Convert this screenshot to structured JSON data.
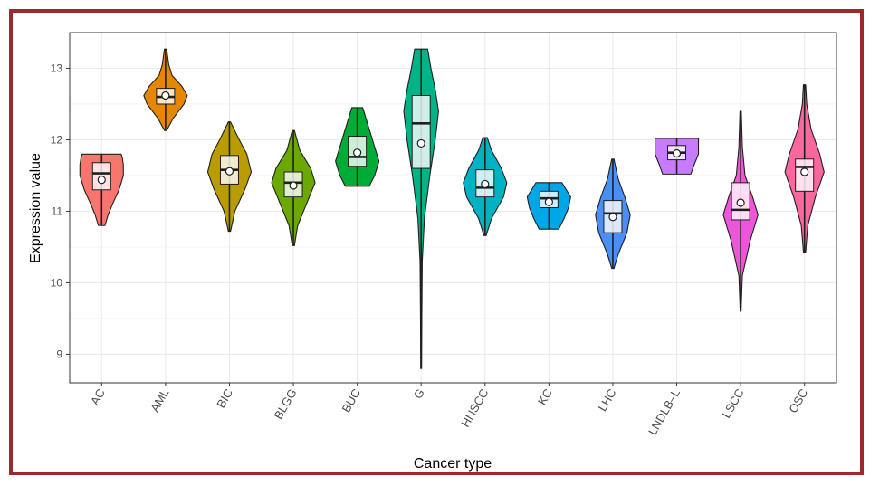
{
  "colors": {
    "frame": "#9b2b2b",
    "panel_border": "#333333",
    "grid": "#ebebeb",
    "outline": "#1f1f1f"
  },
  "chart_data": {
    "type": "violin",
    "xlabel": "Cancer type",
    "ylabel": "Expression value",
    "ylim": [
      8.6,
      13.5
    ],
    "yticks": [
      9,
      10,
      11,
      12,
      13
    ],
    "grid": true,
    "overlays": [
      "boxplot",
      "mean-point"
    ],
    "groups": [
      {
        "name": "AC",
        "color": "#f8766d",
        "min": 10.8,
        "q1": 11.3,
        "median": 11.53,
        "q3": 11.68,
        "max": 11.8,
        "mean": 11.44,
        "density": [
          [
            10.8,
            0.15
          ],
          [
            10.95,
            0.3
          ],
          [
            11.1,
            0.5
          ],
          [
            11.3,
            0.8
          ],
          [
            11.5,
            1.0
          ],
          [
            11.65,
            1.0
          ],
          [
            11.75,
            0.95
          ],
          [
            11.8,
            0.9
          ]
        ]
      },
      {
        "name": "AML",
        "color": "#e58700",
        "min": 12.13,
        "q1": 12.5,
        "median": 12.6,
        "q3": 12.72,
        "max": 13.27,
        "mean": 12.62,
        "density": [
          [
            12.13,
            0.05
          ],
          [
            12.3,
            0.35
          ],
          [
            12.5,
            0.85
          ],
          [
            12.62,
            1.0
          ],
          [
            12.75,
            0.75
          ],
          [
            12.9,
            0.3
          ],
          [
            13.05,
            0.15
          ],
          [
            13.27,
            0.05
          ]
        ]
      },
      {
        "name": "BIC",
        "color": "#b89c00",
        "min": 10.72,
        "q1": 11.38,
        "median": 11.58,
        "q3": 11.78,
        "max": 12.25,
        "mean": 11.56,
        "density": [
          [
            10.72,
            0.05
          ],
          [
            11.0,
            0.25
          ],
          [
            11.3,
            0.7
          ],
          [
            11.55,
            1.0
          ],
          [
            11.8,
            0.8
          ],
          [
            12.0,
            0.45
          ],
          [
            12.25,
            0.05
          ]
        ]
      },
      {
        "name": "BLGG",
        "color": "#6ba900",
        "min": 10.52,
        "q1": 11.2,
        "median": 11.4,
        "q3": 11.55,
        "max": 12.13,
        "mean": 11.36,
        "density": [
          [
            10.52,
            0.05
          ],
          [
            10.8,
            0.2
          ],
          [
            11.1,
            0.6
          ],
          [
            11.4,
            1.0
          ],
          [
            11.6,
            0.8
          ],
          [
            11.85,
            0.3
          ],
          [
            12.13,
            0.05
          ]
        ]
      },
      {
        "name": "BUC",
        "color": "#00ab38",
        "min": 11.35,
        "q1": 11.63,
        "median": 11.76,
        "q3": 12.05,
        "max": 12.45,
        "mean": 11.82,
        "density": [
          [
            11.35,
            0.55
          ],
          [
            11.5,
            0.8
          ],
          [
            11.7,
            1.0
          ],
          [
            11.9,
            0.8
          ],
          [
            12.1,
            0.6
          ],
          [
            12.3,
            0.4
          ],
          [
            12.45,
            0.25
          ]
        ]
      },
      {
        "name": "G",
        "color": "#00b487",
        "min": 8.8,
        "q1": 11.6,
        "median": 12.23,
        "q3": 12.62,
        "max": 13.27,
        "mean": 11.95,
        "density": [
          [
            8.8,
            0.02
          ],
          [
            9.5,
            0.03
          ],
          [
            10.3,
            0.05
          ],
          [
            10.9,
            0.15
          ],
          [
            11.5,
            0.4
          ],
          [
            12.0,
            0.65
          ],
          [
            12.4,
            0.8
          ],
          [
            12.7,
            0.65
          ],
          [
            13.0,
            0.45
          ],
          [
            13.27,
            0.3
          ]
        ]
      },
      {
        "name": "HNSCC",
        "color": "#00b2c4",
        "min": 10.66,
        "q1": 11.2,
        "median": 11.33,
        "q3": 11.58,
        "max": 12.03,
        "mean": 11.38,
        "density": [
          [
            10.66,
            0.05
          ],
          [
            10.9,
            0.3
          ],
          [
            11.2,
            0.85
          ],
          [
            11.4,
            1.0
          ],
          [
            11.6,
            0.75
          ],
          [
            11.85,
            0.3
          ],
          [
            12.03,
            0.1
          ]
        ]
      },
      {
        "name": "KC",
        "color": "#00a7e6",
        "min": 10.75,
        "q1": 11.05,
        "median": 11.18,
        "q3": 11.28,
        "max": 11.4,
        "mean": 11.13,
        "density": [
          [
            10.75,
            0.45
          ],
          [
            10.9,
            0.7
          ],
          [
            11.05,
            0.9
          ],
          [
            11.2,
            1.0
          ],
          [
            11.3,
            0.8
          ],
          [
            11.4,
            0.6
          ]
        ]
      },
      {
        "name": "LHC",
        "color": "#4a8ef7",
        "min": 10.2,
        "q1": 10.7,
        "median": 10.97,
        "q3": 11.15,
        "max": 11.73,
        "mean": 10.92,
        "density": [
          [
            10.2,
            0.05
          ],
          [
            10.4,
            0.25
          ],
          [
            10.7,
            0.65
          ],
          [
            10.95,
            0.8
          ],
          [
            11.2,
            0.55
          ],
          [
            11.45,
            0.25
          ],
          [
            11.73,
            0.05
          ]
        ]
      },
      {
        "name": "LNDLB–L",
        "color": "#c77cff",
        "min": 11.52,
        "q1": 11.72,
        "median": 11.82,
        "q3": 11.92,
        "max": 12.02,
        "mean": 11.81,
        "density": [
          [
            11.52,
            0.65
          ],
          [
            11.65,
            0.8
          ],
          [
            11.8,
            1.0
          ],
          [
            11.95,
            1.0
          ],
          [
            12.02,
            1.0
          ]
        ]
      },
      {
        "name": "LSCC",
        "color": "#ec56d9",
        "min": 9.6,
        "q1": 10.88,
        "median": 11.02,
        "q3": 11.4,
        "max": 12.4,
        "mean": 11.12,
        "density": [
          [
            9.6,
            0.02
          ],
          [
            10.1,
            0.08
          ],
          [
            10.6,
            0.45
          ],
          [
            10.95,
            0.8
          ],
          [
            11.2,
            0.55
          ],
          [
            11.5,
            0.2
          ],
          [
            11.9,
            0.08
          ],
          [
            12.4,
            0.03
          ]
        ]
      },
      {
        "name": "OSC",
        "color": "#f8689e",
        "min": 10.43,
        "q1": 11.28,
        "median": 11.62,
        "q3": 11.73,
        "max": 12.77,
        "mean": 11.55,
        "density": [
          [
            10.43,
            0.05
          ],
          [
            10.8,
            0.15
          ],
          [
            11.2,
            0.5
          ],
          [
            11.55,
            0.9
          ],
          [
            11.8,
            0.7
          ],
          [
            12.15,
            0.3
          ],
          [
            12.5,
            0.1
          ],
          [
            12.77,
            0.05
          ]
        ]
      }
    ]
  }
}
